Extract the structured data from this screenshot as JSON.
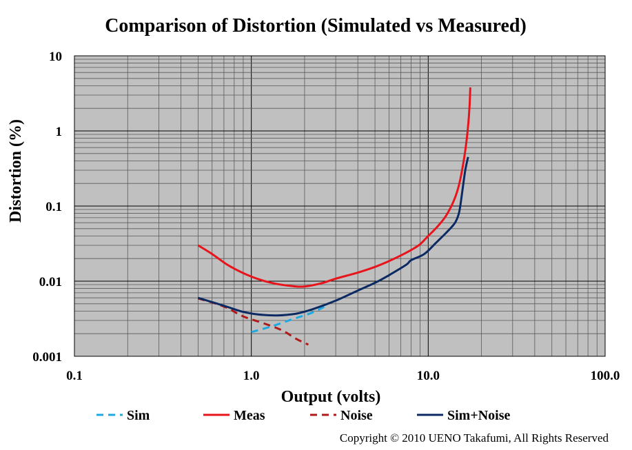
{
  "chart_data": {
    "type": "line",
    "title": "Comparison of Distortion (Simulated vs Measured)",
    "xlabel": "Output (volts)",
    "ylabel": "Distortion (%)",
    "x_scale": "log",
    "y_scale": "log",
    "xlim": [
      0.1,
      100
    ],
    "ylim": [
      0.001,
      10
    ],
    "x_ticks": [
      "0.1",
      "1.0",
      "10.0",
      "100.0"
    ],
    "y_ticks": [
      "10",
      "1",
      "0.1",
      "0.01",
      "0.001"
    ],
    "grid": true,
    "legend_position": "bottom",
    "series": [
      {
        "name": "Sim",
        "color": "#1fa8e0",
        "dash": "dashed",
        "points": [
          [
            1.0,
            0.0021
          ],
          [
            1.3,
            0.0025
          ],
          [
            1.7,
            0.0031
          ],
          [
            2.2,
            0.0038
          ],
          [
            2.6,
            0.0046
          ]
        ]
      },
      {
        "name": "Meas",
        "color": "#e8141b",
        "dash": "solid",
        "points": [
          [
            0.5,
            0.03
          ],
          [
            0.6,
            0.023
          ],
          [
            0.75,
            0.016
          ],
          [
            1.0,
            0.0115
          ],
          [
            1.3,
            0.0095
          ],
          [
            1.7,
            0.0086
          ],
          [
            2.0,
            0.0085
          ],
          [
            2.5,
            0.0094
          ],
          [
            3.0,
            0.0108
          ],
          [
            4.0,
            0.013
          ],
          [
            5.0,
            0.0155
          ],
          [
            6.0,
            0.0185
          ],
          [
            7.0,
            0.022
          ],
          [
            8.0,
            0.026
          ],
          [
            9.0,
            0.031
          ],
          [
            10.0,
            0.04
          ],
          [
            11.0,
            0.05
          ],
          [
            12.5,
            0.072
          ],
          [
            14.0,
            0.12
          ],
          [
            15.0,
            0.2
          ],
          [
            16.0,
            0.45
          ],
          [
            16.7,
            1.0
          ],
          [
            17.1,
            2.0
          ],
          [
            17.3,
            3.8
          ]
        ]
      },
      {
        "name": "Noise",
        "color": "#b01a1a",
        "dash": "dashed",
        "points": [
          [
            0.5,
            0.0059
          ],
          [
            0.7,
            0.0046
          ],
          [
            0.9,
            0.0034
          ],
          [
            1.2,
            0.0027
          ],
          [
            1.5,
            0.0022
          ],
          [
            1.8,
            0.0017
          ],
          [
            2.1,
            0.00143
          ]
        ]
      },
      {
        "name": "Sim+Noise",
        "color": "#0b2a63",
        "dash": "solid",
        "points": [
          [
            0.5,
            0.006
          ],
          [
            0.7,
            0.0047
          ],
          [
            0.9,
            0.0039
          ],
          [
            1.1,
            0.0036
          ],
          [
            1.4,
            0.0035
          ],
          [
            1.8,
            0.0037
          ],
          [
            2.2,
            0.0042
          ],
          [
            3.0,
            0.0055
          ],
          [
            4.0,
            0.0075
          ],
          [
            5.0,
            0.0095
          ],
          [
            6.0,
            0.012
          ],
          [
            7.5,
            0.0165
          ],
          [
            8.0,
            0.019
          ],
          [
            9.5,
            0.023
          ],
          [
            11.0,
            0.032
          ],
          [
            12.5,
            0.043
          ],
          [
            13.5,
            0.052
          ],
          [
            14.3,
            0.062
          ],
          [
            15.0,
            0.085
          ],
          [
            15.6,
            0.16
          ],
          [
            16.2,
            0.3
          ],
          [
            16.8,
            0.45
          ]
        ]
      }
    ],
    "annotation": "Copyright © 2010 UENO Takafumi, All Rights Reserved"
  }
}
